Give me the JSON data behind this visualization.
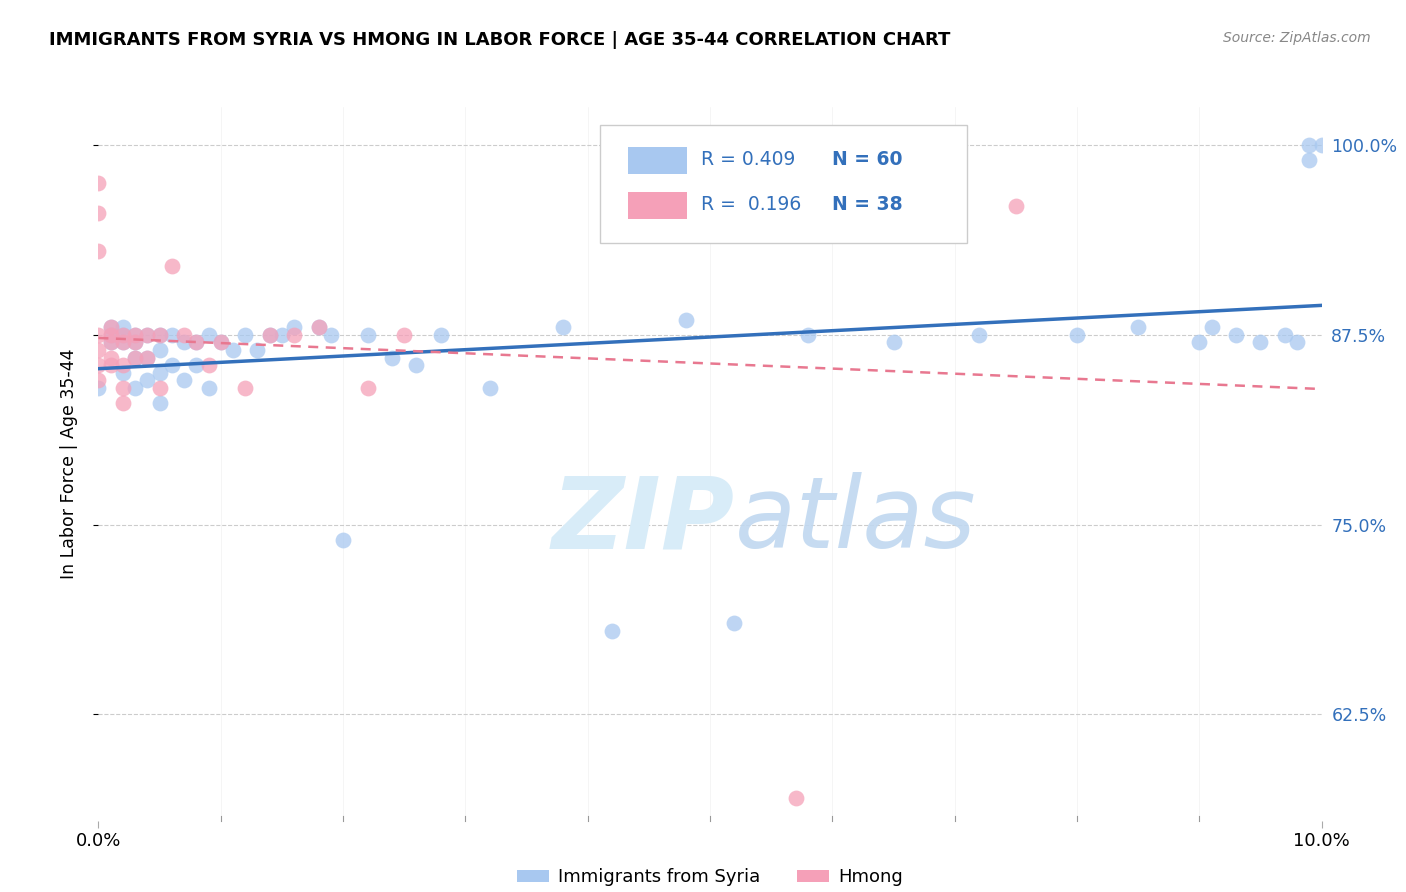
{
  "title": "IMMIGRANTS FROM SYRIA VS HMONG IN LABOR FORCE | AGE 35-44 CORRELATION CHART",
  "source": "Source: ZipAtlas.com",
  "ylabel": "In Labor Force | Age 35-44",
  "xlim": [
    0.0,
    0.1
  ],
  "ylim": [
    0.555,
    1.025
  ],
  "yticks": [
    0.625,
    0.75,
    0.875,
    1.0
  ],
  "ytick_labels": [
    "62.5%",
    "75.0%",
    "87.5%",
    "100.0%"
  ],
  "legend_r_syria": "0.409",
  "legend_n_syria": "60",
  "legend_r_hmong": "0.196",
  "legend_n_hmong": "38",
  "syria_color": "#a8c8f0",
  "hmong_color": "#f5a0b8",
  "syria_line_color": "#3370bb",
  "hmong_line_color": "#e87890",
  "syria_line_x0": 0.0,
  "syria_line_y0": 0.82,
  "syria_line_x1": 0.1,
  "syria_line_y1": 0.99,
  "hmong_line_x0": 0.0,
  "hmong_line_y0": 0.875,
  "hmong_line_x1": 0.025,
  "hmong_line_y1": 0.925,
  "syria_x": [
    0.0,
    0.001,
    0.001,
    0.001,
    0.002,
    0.002,
    0.002,
    0.002,
    0.003,
    0.003,
    0.003,
    0.003,
    0.004,
    0.004,
    0.004,
    0.005,
    0.005,
    0.005,
    0.005,
    0.006,
    0.006,
    0.007,
    0.007,
    0.008,
    0.008,
    0.009,
    0.009,
    0.01,
    0.011,
    0.012,
    0.013,
    0.014,
    0.015,
    0.016,
    0.018,
    0.019,
    0.02,
    0.022,
    0.024,
    0.026,
    0.028,
    0.032,
    0.038,
    0.042,
    0.048,
    0.052,
    0.058,
    0.065,
    0.072,
    0.08,
    0.085,
    0.09,
    0.091,
    0.093,
    0.095,
    0.097,
    0.098,
    0.099,
    0.099,
    0.1
  ],
  "syria_y": [
    0.84,
    0.88,
    0.875,
    0.87,
    0.88,
    0.875,
    0.87,
    0.85,
    0.875,
    0.87,
    0.86,
    0.84,
    0.875,
    0.86,
    0.845,
    0.875,
    0.865,
    0.85,
    0.83,
    0.875,
    0.855,
    0.87,
    0.845,
    0.87,
    0.855,
    0.875,
    0.84,
    0.87,
    0.865,
    0.875,
    0.865,
    0.875,
    0.875,
    0.88,
    0.88,
    0.875,
    0.74,
    0.875,
    0.86,
    0.855,
    0.875,
    0.84,
    0.88,
    0.68,
    0.885,
    0.685,
    0.875,
    0.87,
    0.875,
    0.875,
    0.88,
    0.87,
    0.88,
    0.875,
    0.87,
    0.875,
    0.87,
    0.99,
    1.0,
    1.0
  ],
  "hmong_x": [
    0.0,
    0.0,
    0.0,
    0.0,
    0.0,
    0.0,
    0.0,
    0.001,
    0.001,
    0.001,
    0.001,
    0.001,
    0.002,
    0.002,
    0.002,
    0.002,
    0.002,
    0.003,
    0.003,
    0.003,
    0.004,
    0.004,
    0.005,
    0.005,
    0.006,
    0.007,
    0.008,
    0.009,
    0.01,
    0.012,
    0.014,
    0.016,
    0.018,
    0.022,
    0.025,
    0.057,
    0.068,
    0.075
  ],
  "hmong_y": [
    0.975,
    0.955,
    0.93,
    0.875,
    0.865,
    0.855,
    0.845,
    0.88,
    0.875,
    0.87,
    0.86,
    0.855,
    0.875,
    0.87,
    0.855,
    0.84,
    0.83,
    0.875,
    0.87,
    0.86,
    0.875,
    0.86,
    0.875,
    0.84,
    0.92,
    0.875,
    0.87,
    0.855,
    0.87,
    0.84,
    0.875,
    0.875,
    0.88,
    0.84,
    0.875,
    0.57,
    0.97,
    0.96
  ]
}
